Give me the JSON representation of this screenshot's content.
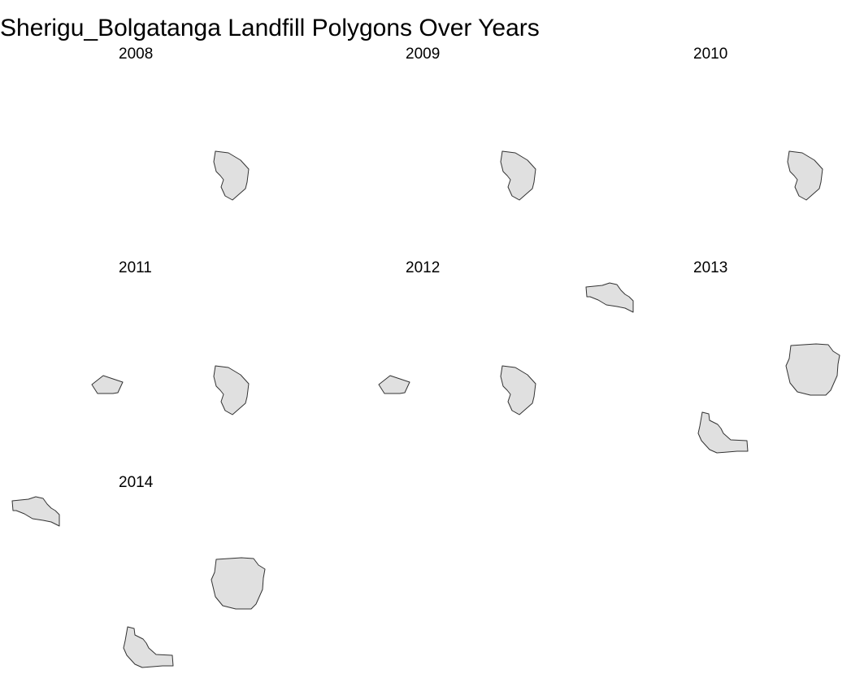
{
  "title": "Sherigu_Bolgatanga Landfill Polygons Over Years",
  "panels": [
    {
      "year": "2008",
      "shapes": [
        "main"
      ]
    },
    {
      "year": "2009",
      "shapes": [
        "main"
      ]
    },
    {
      "year": "2010",
      "shapes": [
        "main"
      ]
    },
    {
      "year": "2011",
      "shapes": [
        "small",
        "main"
      ]
    },
    {
      "year": "2012",
      "shapes": [
        "small",
        "main",
        "north"
      ]
    },
    {
      "year": "2013",
      "shapes": [
        "big",
        "south"
      ]
    },
    {
      "year": "2014",
      "shapes": [
        "north",
        "big",
        "south"
      ]
    }
  ],
  "colors": {
    "fill": "#e0e0e0",
    "stroke": "#333333",
    "background": "#ffffff"
  }
}
